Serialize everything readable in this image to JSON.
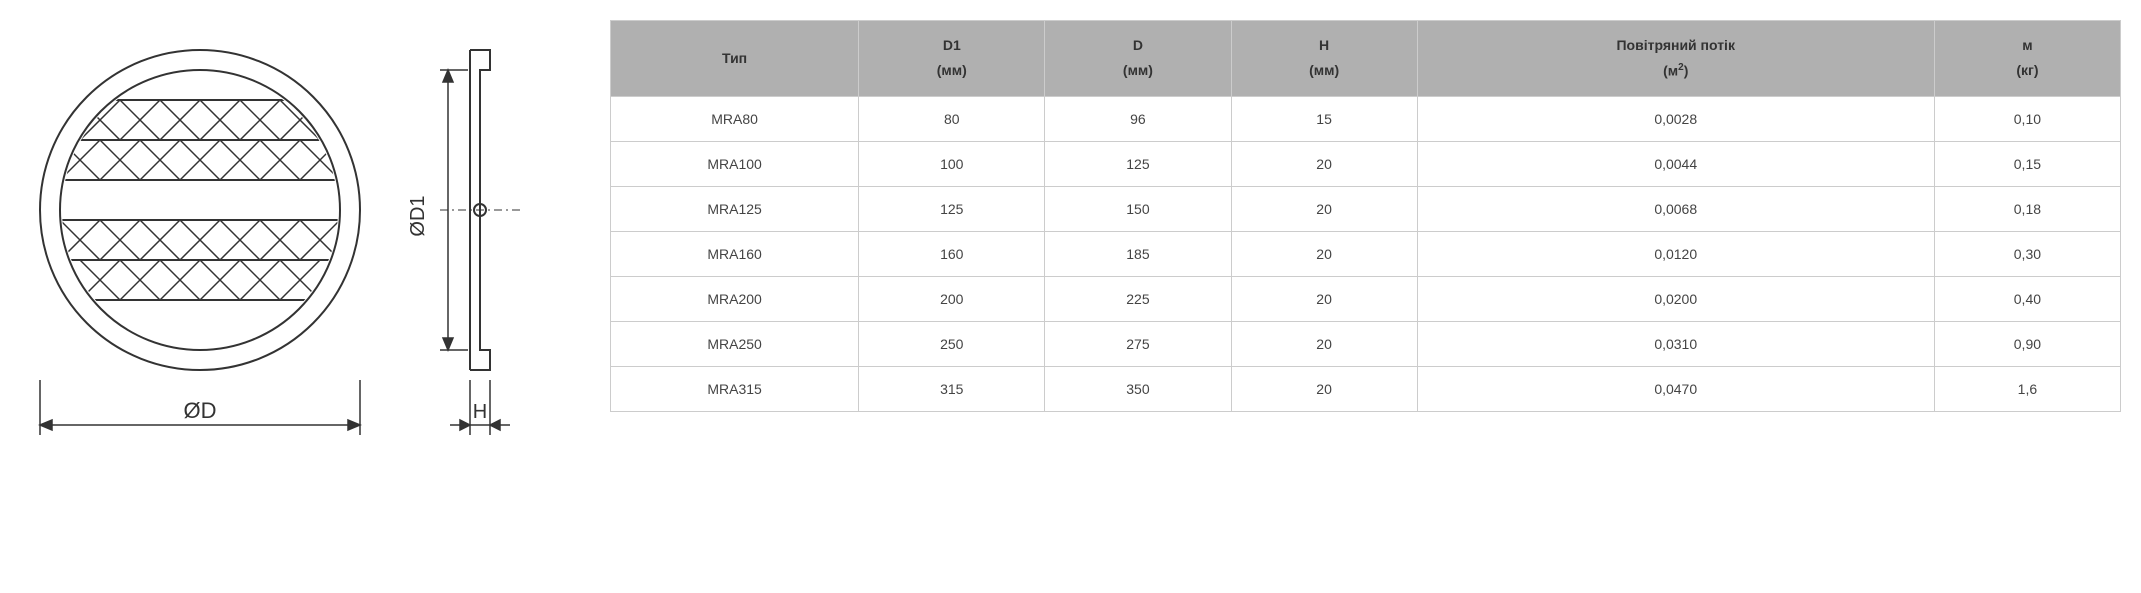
{
  "diagram": {
    "front": {
      "label_outer": "ØD",
      "label_inner": "ØD1",
      "stroke": "#333333",
      "stroke_width": 2,
      "outer_r": 160,
      "inner_r": 140
    },
    "side": {
      "label_d1": "ØD1",
      "label_h": "H",
      "stroke": "#333333",
      "stroke_width": 2
    }
  },
  "table": {
    "header_bg": "#b0b0b0",
    "border_color": "#cccccc",
    "text_color": "#444444",
    "font_size": 14,
    "columns": [
      {
        "title": "Тип",
        "sub": "",
        "width": "12%"
      },
      {
        "title": "D1",
        "sub": "(мм)",
        "width": "9%"
      },
      {
        "title": "D",
        "sub": "(мм)",
        "width": "9%"
      },
      {
        "title": "H",
        "sub": "(мм)",
        "width": "9%"
      },
      {
        "title": "Повітряний потік",
        "sub": "(м²)",
        "width": "25%"
      },
      {
        "title": "м",
        "sub": "(кг)",
        "width": "9%"
      }
    ],
    "rows": [
      [
        "MRA80",
        "80",
        "96",
        "15",
        "0,0028",
        "0,10"
      ],
      [
        "MRA100",
        "100",
        "125",
        "20",
        "0,0044",
        "0,15"
      ],
      [
        "MRA125",
        "125",
        "150",
        "20",
        "0,0068",
        "0,18"
      ],
      [
        "MRA160",
        "160",
        "185",
        "20",
        "0,0120",
        "0,30"
      ],
      [
        "MRA200",
        "200",
        "225",
        "20",
        "0,0200",
        "0,40"
      ],
      [
        "MRA250",
        "250",
        "275",
        "20",
        "0,0310",
        "0,90"
      ],
      [
        "MRA315",
        "315",
        "350",
        "20",
        "0,0470",
        "1,6"
      ]
    ]
  }
}
